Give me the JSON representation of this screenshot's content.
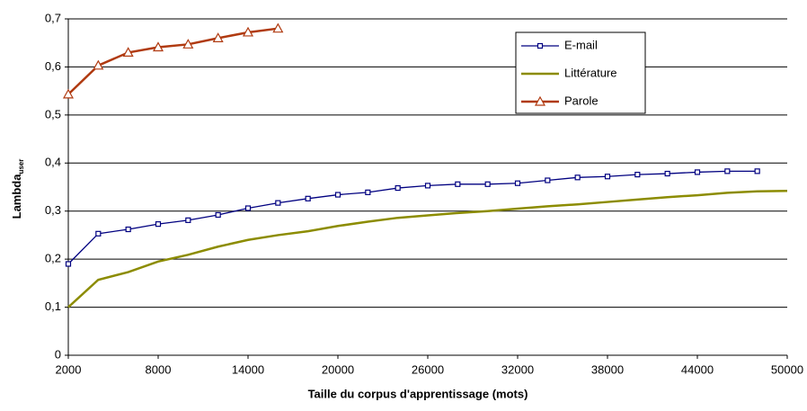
{
  "chart_data": {
    "type": "line",
    "x_label": "Taille du corpus d'apprentissage (mots)",
    "y_label": {
      "text": "Lambda",
      "subscript": "user"
    },
    "xlim": [
      2000,
      50000
    ],
    "xticks": [
      2000,
      8000,
      14000,
      20000,
      26000,
      32000,
      38000,
      44000,
      50000
    ],
    "ylim": [
      0,
      0.7
    ],
    "yticks": [
      {
        "value": 0,
        "label": "0"
      },
      {
        "value": 0.1,
        "label": "0,1"
      },
      {
        "value": 0.2,
        "label": "0,2"
      },
      {
        "value": 0.3,
        "label": "0,3"
      },
      {
        "value": 0.4,
        "label": "0,4"
      },
      {
        "value": 0.5,
        "label": "0,5"
      },
      {
        "value": 0.6,
        "label": "0,6"
      },
      {
        "value": 0.7,
        "label": "0,7"
      }
    ],
    "grid": true,
    "legend": "top-right",
    "series": [
      {
        "name": "E-mail",
        "color": "#000080",
        "marker": "square",
        "x": [
          2000,
          4000,
          6000,
          8000,
          10000,
          12000,
          14000,
          16000,
          18000,
          20000,
          22000,
          24000,
          26000,
          28000,
          30000,
          32000,
          34000,
          36000,
          38000,
          40000,
          42000,
          44000,
          46000,
          48000
        ],
        "values": [
          0.19,
          0.253,
          0.262,
          0.273,
          0.281,
          0.292,
          0.306,
          0.317,
          0.326,
          0.334,
          0.339,
          0.348,
          0.353,
          0.356,
          0.356,
          0.358,
          0.364,
          0.37,
          0.372,
          0.376,
          0.378,
          0.381,
          0.383,
          0.383
        ]
      },
      {
        "name": "Littérature",
        "color": "#8c8c00",
        "marker": "none",
        "x": [
          2000,
          4000,
          6000,
          8000,
          10000,
          12000,
          14000,
          16000,
          18000,
          20000,
          22000,
          24000,
          26000,
          28000,
          30000,
          32000,
          34000,
          36000,
          38000,
          40000,
          42000,
          44000,
          46000,
          48000,
          50000
        ],
        "values": [
          0.1,
          0.157,
          0.173,
          0.195,
          0.209,
          0.226,
          0.24,
          0.25,
          0.258,
          0.269,
          0.278,
          0.286,
          0.291,
          0.296,
          0.3,
          0.305,
          0.31,
          0.314,
          0.319,
          0.324,
          0.329,
          0.333,
          0.338,
          0.341,
          0.342
        ]
      },
      {
        "name": "Parole",
        "color": "#b03a10",
        "marker": "triangle",
        "x": [
          2000,
          4000,
          6000,
          8000,
          10000,
          12000,
          14000,
          16000
        ],
        "values": [
          0.543,
          0.603,
          0.63,
          0.641,
          0.647,
          0.66,
          0.672,
          0.68
        ]
      }
    ]
  }
}
